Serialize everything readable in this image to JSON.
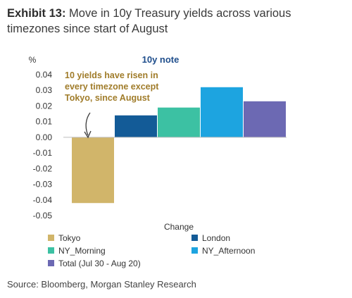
{
  "exhibit": {
    "label": "Exhibit 13:",
    "title_line1": " Move in 10y Treasury yields across various",
    "title_line2": "timezones since start of August"
  },
  "source": "Source: Bloomberg, Morgan Stanley Research",
  "colors": {
    "Tokyo": "#d1b56a",
    "London": "#135b97",
    "NY_Morning": "#3cc1a3",
    "NY_Afternoon": "#1da4e0",
    "Total (Jul 30 - Aug 20)": "#6c69b3"
  },
  "chart_data": {
    "type": "bar",
    "title": "10y note",
    "xlabel": "Change",
    "ylabel": "%",
    "ylim": [
      -0.05,
      0.04
    ],
    "yticks": [
      0.04,
      0.03,
      0.02,
      0.01,
      0.0,
      -0.01,
      -0.02,
      -0.03,
      -0.04,
      -0.05
    ],
    "ytick_labels": [
      "0.04",
      "0.03",
      "0.02",
      "0.01",
      "0.00",
      "-0.01",
      "-0.02",
      "-0.03",
      "-0.04",
      "-0.05"
    ],
    "grid": false,
    "legend_position": "bottom",
    "series": [
      {
        "name": "Tokyo",
        "values": [
          -0.042
        ]
      },
      {
        "name": "London",
        "values": [
          0.014
        ]
      },
      {
        "name": "NY_Morning",
        "values": [
          0.019
        ]
      },
      {
        "name": "NY_Afternoon",
        "values": [
          0.032
        ]
      },
      {
        "name": "Total (Jul 30 - Aug 20)",
        "values": [
          0.023
        ]
      }
    ],
    "annotation": [
      "10 yields  have risen in",
      "every timezone except",
      "Tokyo, since August"
    ]
  }
}
